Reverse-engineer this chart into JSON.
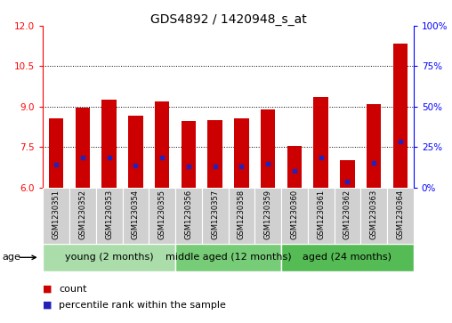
{
  "title": "GDS4892 / 1420948_s_at",
  "samples": [
    "GSM1230351",
    "GSM1230352",
    "GSM1230353",
    "GSM1230354",
    "GSM1230355",
    "GSM1230356",
    "GSM1230357",
    "GSM1230358",
    "GSM1230359",
    "GSM1230360",
    "GSM1230361",
    "GSM1230362",
    "GSM1230363",
    "GSM1230364"
  ],
  "bar_heights": [
    8.55,
    8.97,
    9.25,
    8.65,
    9.2,
    8.45,
    8.5,
    8.55,
    8.9,
    7.55,
    9.35,
    7.0,
    9.1,
    11.35
  ],
  "blue_dot_y": [
    6.85,
    7.12,
    7.12,
    6.82,
    7.12,
    6.78,
    6.77,
    6.77,
    6.88,
    6.62,
    7.12,
    6.22,
    6.9,
    7.72
  ],
  "ymin": 6,
  "ymax": 12,
  "yticks_left": [
    6,
    7.5,
    9,
    10.5,
    12
  ],
  "yticks_right": [
    0,
    25,
    50,
    75,
    100
  ],
  "bar_color": "#cc0000",
  "dot_color": "#2222bb",
  "bar_width": 0.55,
  "group_defs": [
    {
      "start": 0,
      "end": 4,
      "label": "young (2 months)",
      "color": "#aaddaa"
    },
    {
      "start": 5,
      "end": 8,
      "label": "middle aged (12 months)",
      "color": "#77cc77"
    },
    {
      "start": 9,
      "end": 13,
      "label": "aged (24 months)",
      "color": "#55bb55"
    }
  ],
  "age_label": "age",
  "legend_count_label": "count",
  "legend_percentile_label": "percentile rank within the sample",
  "plot_bg_color": "#ffffff",
  "title_fontsize": 10,
  "tick_fontsize": 7.5,
  "sample_fontsize": 6.0,
  "group_fontsize": 8.0,
  "legend_fontsize": 8.0
}
